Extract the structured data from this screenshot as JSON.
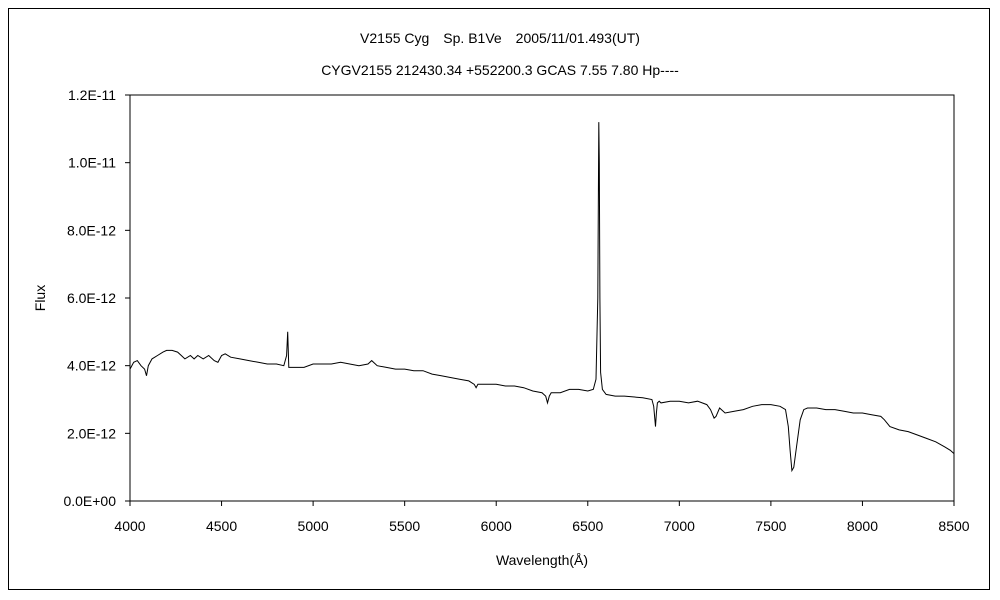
{
  "chart_data": {
    "type": "line",
    "title": "V2155 Cyg　Sp. B1Ve　2005/11/01.493(UT)",
    "subtitle": "CYGV2155 212430.34 +552200.3 GCAS 7.55 7.80 Hp----",
    "xlabel": "Wavelength(Å)",
    "ylabel": "Flux",
    "xlim": [
      4000,
      8500
    ],
    "ylim": [
      0,
      1.2e-11
    ],
    "xticks": [
      4000,
      4500,
      5000,
      5500,
      6000,
      6500,
      7000,
      7500,
      8000,
      8500
    ],
    "xtick_labels": [
      "4000",
      "4500",
      "5000",
      "5500",
      "6000",
      "6500",
      "7000",
      "7500",
      "8000",
      "8500"
    ],
    "yticks": [
      0,
      2e-12,
      4e-12,
      6e-12,
      8e-12,
      1e-11,
      1.2e-11
    ],
    "ytick_labels": [
      "0.0E+00",
      "2.0E-12",
      "4.0E-12",
      "6.0E-12",
      "8.0E-12",
      "1.0E-11",
      "1.2E-11"
    ],
    "grid": false,
    "series": [
      {
        "x": [
          4000,
          4020,
          4040,
          4060,
          4080,
          4090,
          4100,
          4120,
          4150,
          4180,
          4200,
          4230,
          4260,
          4280,
          4300,
          4330,
          4350,
          4370,
          4400,
          4430,
          4460,
          4480,
          4500,
          4520,
          4550,
          4600,
          4650,
          4700,
          4750,
          4800,
          4840,
          4855,
          4861,
          4867,
          4880,
          4900,
          4950,
          5000,
          5050,
          5100,
          5150,
          5200,
          5250,
          5300,
          5320,
          5350,
          5400,
          5450,
          5500,
          5550,
          5600,
          5650,
          5700,
          5750,
          5800,
          5850,
          5880,
          5890,
          5900,
          5920,
          5950,
          6000,
          6050,
          6100,
          6150,
          6200,
          6250,
          6270,
          6280,
          6290,
          6300,
          6350,
          6400,
          6450,
          6500,
          6530,
          6545,
          6555,
          6560,
          6563,
          6566,
          6570,
          6580,
          6600,
          6650,
          6700,
          6800,
          6850,
          6860,
          6870,
          6875,
          6880,
          6890,
          6900,
          6950,
          7000,
          7050,
          7100,
          7150,
          7170,
          7190,
          7200,
          7220,
          7250,
          7300,
          7350,
          7400,
          7450,
          7500,
          7550,
          7580,
          7595,
          7605,
          7615,
          7625,
          7640,
          7660,
          7680,
          7700,
          7750,
          7800,
          7850,
          7900,
          7950,
          8000,
          8050,
          8100,
          8120,
          8150,
          8200,
          8250,
          8300,
          8350,
          8400,
          8450,
          8480,
          8500
        ],
        "y": [
          3.9e-12,
          4.1e-12,
          4.15e-12,
          4e-12,
          3.9e-12,
          3.7e-12,
          4e-12,
          4.2e-12,
          4.3e-12,
          4.4e-12,
          4.45e-12,
          4.45e-12,
          4.4e-12,
          4.3e-12,
          4.2e-12,
          4.3e-12,
          4.2e-12,
          4.3e-12,
          4.2e-12,
          4.3e-12,
          4.15e-12,
          4.1e-12,
          4.3e-12,
          4.35e-12,
          4.25e-12,
          4.2e-12,
          4.15e-12,
          4.1e-12,
          4.05e-12,
          4.05e-12,
          4e-12,
          4.3e-12,
          5e-12,
          3.95e-12,
          3.95e-12,
          3.95e-12,
          3.95e-12,
          4.05e-12,
          4.05e-12,
          4.05e-12,
          4.1e-12,
          4.05e-12,
          4e-12,
          4.05e-12,
          4.15e-12,
          4e-12,
          3.95e-12,
          3.9e-12,
          3.9e-12,
          3.85e-12,
          3.85e-12,
          3.75e-12,
          3.7e-12,
          3.65e-12,
          3.6e-12,
          3.55e-12,
          3.45e-12,
          3.35e-12,
          3.45e-12,
          3.45e-12,
          3.45e-12,
          3.45e-12,
          3.4e-12,
          3.4e-12,
          3.35e-12,
          3.25e-12,
          3.2e-12,
          3.1e-12,
          2.9e-12,
          3.1e-12,
          3.2e-12,
          3.2e-12,
          3.3e-12,
          3.3e-12,
          3.25e-12,
          3.3e-12,
          3.6e-12,
          6e-12,
          1.12e-11,
          1e-11,
          6e-12,
          3.8e-12,
          3.3e-12,
          3.15e-12,
          3.1e-12,
          3.1e-12,
          3.05e-12,
          3e-12,
          2.8e-12,
          2.2e-12,
          2.6e-12,
          2.9e-12,
          2.95e-12,
          2.9e-12,
          2.95e-12,
          2.95e-12,
          2.9e-12,
          2.95e-12,
          2.85e-12,
          2.7e-12,
          2.45e-12,
          2.5e-12,
          2.75e-12,
          2.6e-12,
          2.65e-12,
          2.7e-12,
          2.8e-12,
          2.85e-12,
          2.85e-12,
          2.8e-12,
          2.7e-12,
          2.2e-12,
          1.5e-12,
          9e-13,
          1e-12,
          1.6e-12,
          2.4e-12,
          2.7e-12,
          2.75e-12,
          2.75e-12,
          2.7e-12,
          2.7e-12,
          2.65e-12,
          2.6e-12,
          2.6e-12,
          2.55e-12,
          2.5e-12,
          2.4e-12,
          2.2e-12,
          2.1e-12,
          2.05e-12,
          1.95e-12,
          1.85e-12,
          1.75e-12,
          1.6e-12,
          1.5e-12,
          1.4e-12
        ]
      }
    ]
  }
}
